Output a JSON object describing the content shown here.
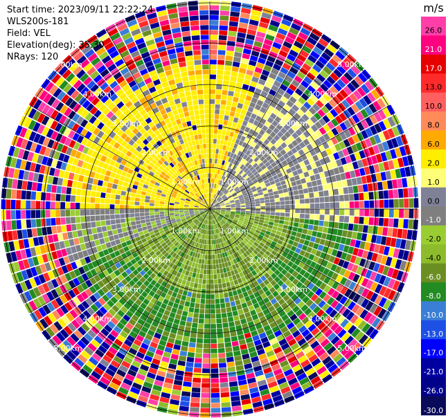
{
  "meta": {
    "start_time": "Start time: 2023/09/11 22:22:24",
    "instrument": "WLS200s-181",
    "field": "Field: VEL",
    "elevation": "Elevation(deg): 35.30",
    "nrays": "NRays: 120"
  },
  "chart_data": {
    "type": "heatmap",
    "projection": "polar",
    "field": "VEL",
    "nrays": 120,
    "max_range_km": 5.0,
    "range_ring_labels": [
      "1.00km",
      "2.00km",
      "3.00km",
      "4.00km",
      "5.00km"
    ],
    "colorbar": {
      "unit": "m/s",
      "tick_labels": [
        "26.0",
        "21.0",
        "17.0",
        "13.0",
        "10.0",
        "8.0",
        "6.0",
        "2.0",
        "1.0",
        "0.0",
        "-1.0",
        "-2.0",
        "-4.0",
        "-6.0",
        "-8.0",
        "-10.0",
        "-13.0",
        "-17.0",
        "-21.0",
        "-26.0",
        "-30.0"
      ],
      "boundaries": [
        30,
        26,
        21,
        17,
        13,
        10,
        8,
        6,
        2,
        1,
        0,
        -1,
        -2,
        -4,
        -6,
        -8,
        -10,
        -13,
        -17,
        -21,
        -26,
        -30
      ],
      "colors": [
        "#ff3ea8",
        "#ff007f",
        "#e60000",
        "#ff2a2a",
        "#ff5f5f",
        "#ff8a5a",
        "#ffaa00",
        "#ffee00",
        "#ffff77",
        "#7f8296",
        "#7f7f7f",
        "#9acd32",
        "#8dbb2b",
        "#6b8e23",
        "#228b22",
        "#3a7fd5",
        "#1e50e6",
        "#0000ff",
        "#0000a0",
        "#00008b",
        "#0a0a5a"
      ]
    },
    "pattern_description_bands": {
      "inner_ordered_radius_km": 3.5,
      "positive_sector_deg": [
        270,
        20
      ],
      "negative_sector_deg": [
        95,
        250
      ]
    }
  }
}
